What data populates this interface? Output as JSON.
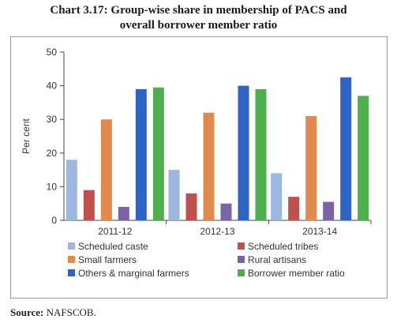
{
  "title_line1": "Chart 3.17: Group-wise share in membership of PACS and",
  "title_line2": "overall borrower member ratio",
  "source_label": "Source:",
  "source_text": " NAFSCOB.",
  "chart_data": {
    "type": "bar",
    "categories": [
      "2011-12",
      "2012-13",
      "2013-14"
    ],
    "ylabel": "Per cent",
    "ylim": [
      0,
      50
    ],
    "yticks": [
      0,
      10,
      20,
      30,
      40,
      50
    ],
    "grid": false,
    "legend_position": "bottom",
    "series": [
      {
        "name": "Scheduled caste",
        "color": "#9db7e0",
        "values": [
          18,
          15,
          14
        ]
      },
      {
        "name": "Scheduled tribes",
        "color": "#c0504d",
        "values": [
          9,
          8,
          7
        ]
      },
      {
        "name": "Small farmers",
        "color": "#e08a4e",
        "values": [
          30,
          32,
          31
        ]
      },
      {
        "name": "Rural artisans",
        "color": "#7b64a6",
        "values": [
          4,
          5,
          5.5
        ]
      },
      {
        "name": "Others & marginal farmers",
        "color": "#2f63c4",
        "values": [
          39,
          40,
          42.5
        ]
      },
      {
        "name": "Borrower member ratio",
        "color": "#4cb04c",
        "values": [
          39.5,
          39,
          37
        ]
      }
    ]
  }
}
